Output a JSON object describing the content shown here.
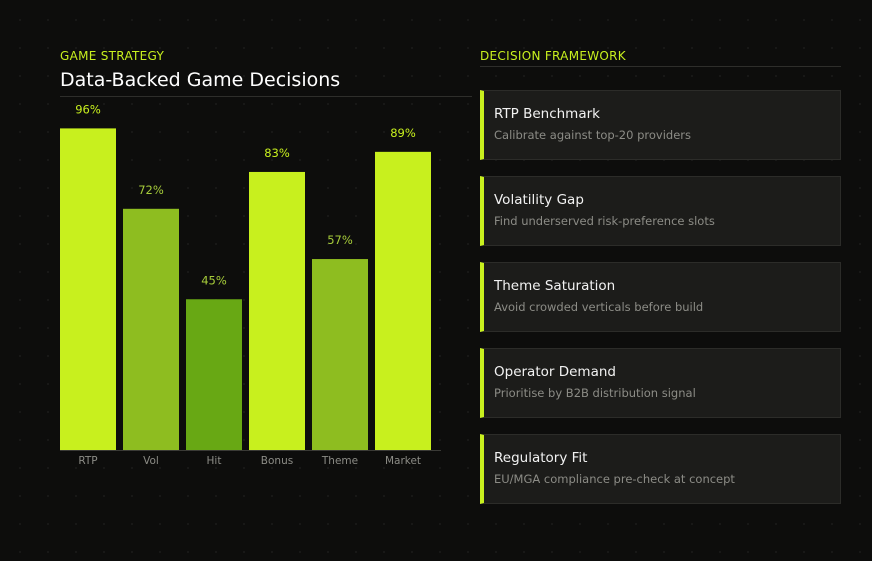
{
  "header": {
    "eyebrow": "GAME STRATEGY",
    "title": "Data-Backed Game Decisions"
  },
  "framework": {
    "eyebrow": "DECISION FRAMEWORK",
    "cards": [
      {
        "title": "RTP Benchmark",
        "desc": "Calibrate against top-20 providers"
      },
      {
        "title": "Volatility Gap",
        "desc": "Find underserved risk-preference slots"
      },
      {
        "title": "Theme Saturation",
        "desc": "Avoid crowded verticals before build"
      },
      {
        "title": "Operator Demand",
        "desc": "Prioritise by B2B distribution signal"
      },
      {
        "title": "Regulatory Fit",
        "desc": "EU/MGA compliance pre-check at concept"
      }
    ]
  },
  "colors": {
    "accent": "#c8f01e",
    "bar_mid": "#8ebd20",
    "bar_low": "#68a814",
    "label_muted": "#a6cc3a"
  },
  "chart_data": {
    "type": "bar",
    "categories": [
      "RTP",
      "Vol",
      "Hit",
      "Bonus",
      "Theme",
      "Market"
    ],
    "values": [
      96,
      72,
      45,
      83,
      57,
      89
    ],
    "value_labels": [
      "96%",
      "72%",
      "45%",
      "83%",
      "57%",
      "89%"
    ],
    "bar_colors": [
      "#c8f01e",
      "#8ebd20",
      "#68a814",
      "#c8f01e",
      "#8ebd20",
      "#c8f01e"
    ],
    "label_colors": [
      "#c8f01e",
      "#a6cc3a",
      "#a6cc3a",
      "#c8f01e",
      "#a6cc3a",
      "#c8f01e"
    ],
    "title": "",
    "xlabel": "",
    "ylabel": "",
    "ylim": [
      0,
      100
    ],
    "grid": false,
    "legend": "none"
  }
}
